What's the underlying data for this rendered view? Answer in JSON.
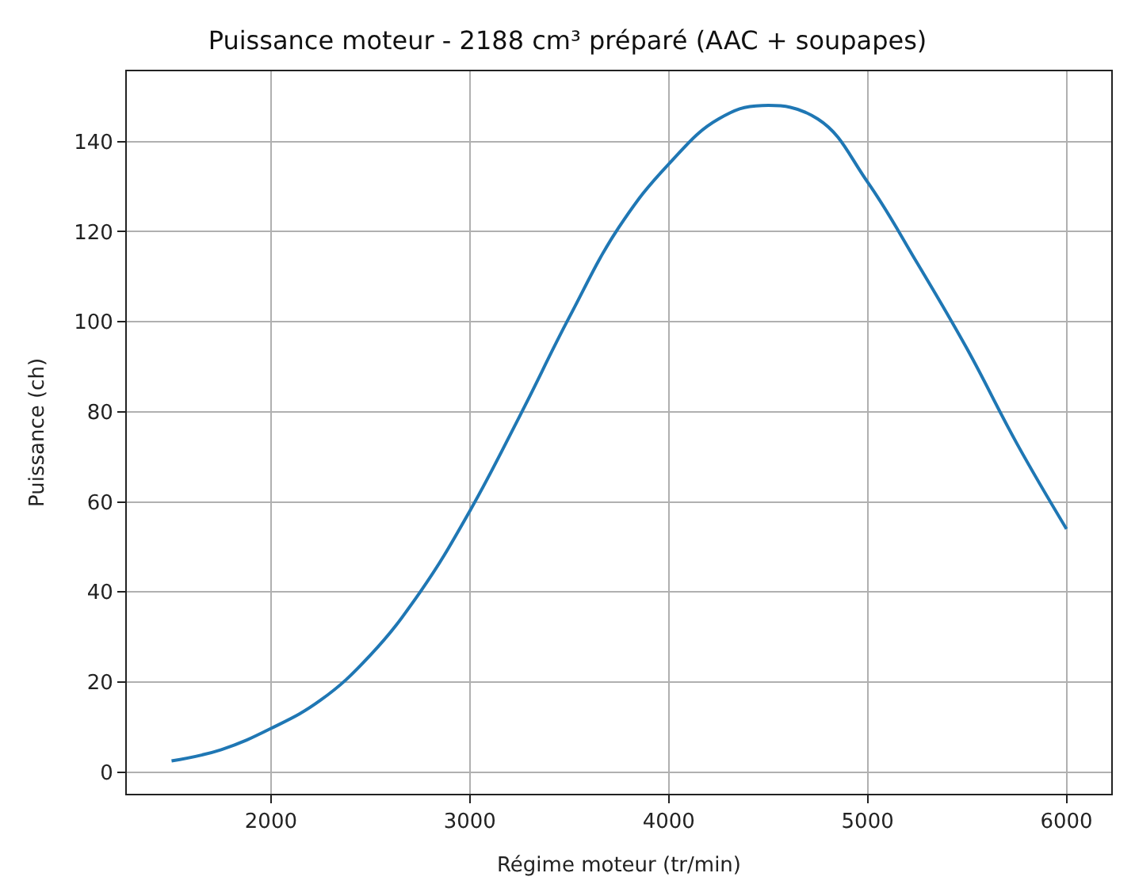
{
  "chart_data": {
    "type": "line",
    "title": "Puissance moteur - 2188 cm³ préparé (AAC + soupapes)",
    "xlabel": "Régime moteur (tr/min)",
    "ylabel": "Puissance (ch)",
    "x": [
      1500,
      1750,
      2000,
      2250,
      2500,
      2750,
      3000,
      3250,
      3500,
      3750,
      4000,
      4250,
      4470,
      4750,
      5000,
      5250,
      5500,
      5750,
      6000
    ],
    "series": [
      {
        "color": "#1f77b4",
        "values": [
          2.5,
          5,
          9.7,
          16,
          26,
          40,
          58,
          79,
          101,
          121,
          135,
          145,
          148,
          145,
          131,
          113,
          94,
          73,
          54
        ]
      }
    ],
    "xlim": [
      1275,
      6225
    ],
    "ylim": [
      -4.8,
      155.6
    ],
    "xticks": [
      2000,
      3000,
      4000,
      5000,
      6000
    ],
    "yticks": [
      0,
      20,
      40,
      60,
      80,
      100,
      120,
      140
    ],
    "grid": true,
    "marker": "none",
    "line_style": "solid"
  }
}
